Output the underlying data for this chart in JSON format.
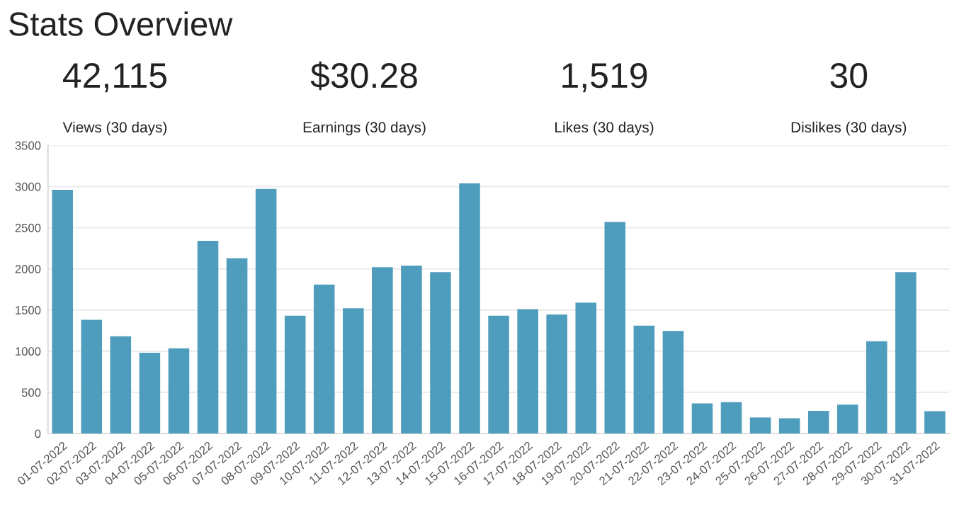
{
  "chart_data": [
    {
      "type": "other",
      "title": "Stats Overview",
      "annotations": [
        "42,115",
        "Views (30 days)",
        "$30.28",
        "Earnings (30 days)",
        "1,519",
        "Likes (30 days)",
        "30",
        "Dislikes (30 days)"
      ]
    },
    {
      "type": "bar",
      "categories": [
        "01-07-2022",
        "02-07-2022",
        "03-07-2022",
        "04-07-2022",
        "05-07-2022",
        "06-07-2022",
        "07-07-2022",
        "08-07-2022",
        "09-07-2022",
        "10-07-2022",
        "11-07-2022",
        "12-07-2022",
        "13-07-2022",
        "14-07-2022",
        "15-07-2022",
        "16-07-2022",
        "17-07-2022",
        "18-07-2022",
        "19-07-2022",
        "20-07-2022",
        "21-07-2022",
        "22-07-2022",
        "23-07-2022",
        "24-07-2022",
        "25-07-2022",
        "26-07-2022",
        "27-07-2022",
        "28-07-2022",
        "29-07-2022",
        "30-07-2022",
        "31-07-2022"
      ],
      "values": [
        2960,
        1380,
        1180,
        980,
        1035,
        2340,
        2130,
        2970,
        1430,
        1810,
        1520,
        2020,
        2040,
        1960,
        3040,
        1430,
        1510,
        1445,
        1590,
        2570,
        1310,
        1245,
        365,
        380,
        195,
        185,
        275,
        350,
        1120,
        1960,
        270
      ],
      "color": "#4f9dbd",
      "ylim": [
        0,
        3500
      ],
      "yticks": [
        0,
        500,
        1000,
        1500,
        2000,
        2500,
        3000,
        3500
      ],
      "grid": "y",
      "legend": false
    }
  ]
}
